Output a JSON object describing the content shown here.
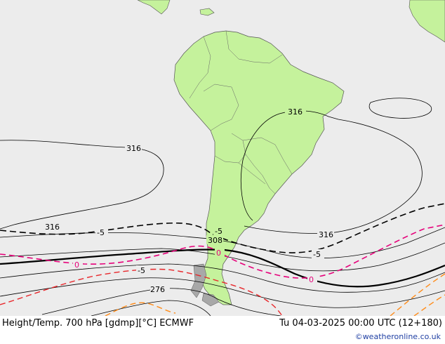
{
  "map": {
    "background_color": "#ececec",
    "land_color": "#c5f29c",
    "border_color": "#555555",
    "contour_labels": {
      "height_a": "316",
      "height_b": "316",
      "height_c": "316",
      "height_d": "316",
      "height_e": "308",
      "height_f": "276",
      "temp_a": "-5",
      "temp_b": "-5",
      "temp_c": "-5",
      "temp_d": "-5",
      "temp_e": "0",
      "temp_f": "0",
      "temp_g": "0"
    },
    "colors": {
      "height_contour": "#000000",
      "temp_minus5": "#000000",
      "temp_zero": "#e6007a",
      "temp_warm": "#e8262a",
      "temp_cold": "#ff8c1a"
    }
  },
  "footer": {
    "title": "Height/Temp. 700 hPa [gdmp][°C] ECMWF",
    "valid_time": "Tu 04-03-2025 00:00 UTC (12+180)",
    "credit": "©weatheronline.co.uk"
  }
}
